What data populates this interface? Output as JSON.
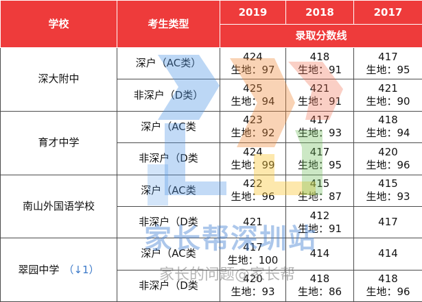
{
  "header": {
    "school": "学校",
    "type": "考生类型",
    "years": [
      "2019",
      "2018",
      "2017"
    ],
    "span_label": "录取分数线"
  },
  "geo_prefix": "生地：",
  "schools": [
    {
      "name": "深大附中",
      "note": "",
      "rows": [
        {
          "type": "深户（AC类）",
          "cells": [
            {
              "score": "424",
              "geo": "97"
            },
            {
              "score": "418",
              "geo": "91"
            },
            {
              "score": "417",
              "geo": "95"
            }
          ]
        },
        {
          "type": "非深户（D类）",
          "cells": [
            {
              "score": "425",
              "geo": "94"
            },
            {
              "score": "421",
              "geo": "91"
            },
            {
              "score": "421",
              "geo": "90"
            }
          ]
        }
      ]
    },
    {
      "name": "育才中学",
      "note": "",
      "rows": [
        {
          "type": "深户（AC类",
          "cells": [
            {
              "score": "423",
              "geo": "92"
            },
            {
              "score": "417",
              "geo": "93"
            },
            {
              "score": "418",
              "geo": "94"
            }
          ]
        },
        {
          "type": "非深户（D类",
          "cells": [
            {
              "score": "424",
              "geo": "99"
            },
            {
              "score": "417",
              "geo": "95"
            },
            {
              "score": "420",
              "geo": "96"
            }
          ]
        }
      ]
    },
    {
      "name": "南山外国语学校",
      "note": "",
      "rows": [
        {
          "type": "深户（AC类",
          "cells": [
            {
              "score": "422",
              "geo": "96"
            },
            {
              "score": "415",
              "geo": "87"
            },
            {
              "score": "415",
              "geo": "93"
            }
          ]
        },
        {
          "type": "非深户（D类",
          "cells": [
            {
              "score": "421",
              "geo": ""
            },
            {
              "score": "412",
              "geo": "91"
            },
            {
              "score": "417",
              "geo": ""
            }
          ]
        }
      ]
    },
    {
      "name": "翠园中学",
      "note": "（↓1）",
      "rows": [
        {
          "type": "深户（AC类",
          "cells": [
            {
              "score": "417",
              "geo": "100"
            },
            {
              "score": "414",
              "geo": ""
            },
            {
              "score": "414",
              "geo": ""
            }
          ]
        },
        {
          "type": "非深户（D类",
          "cells": [
            {
              "score": "420",
              "geo": "93"
            },
            {
              "score": "418",
              "geo": "86"
            },
            {
              "score": "418",
              "geo": "96"
            }
          ]
        }
      ]
    }
  ],
  "watermark": {
    "line1": "家长帮深圳站",
    "line2": "家长的问题@家长帮"
  }
}
